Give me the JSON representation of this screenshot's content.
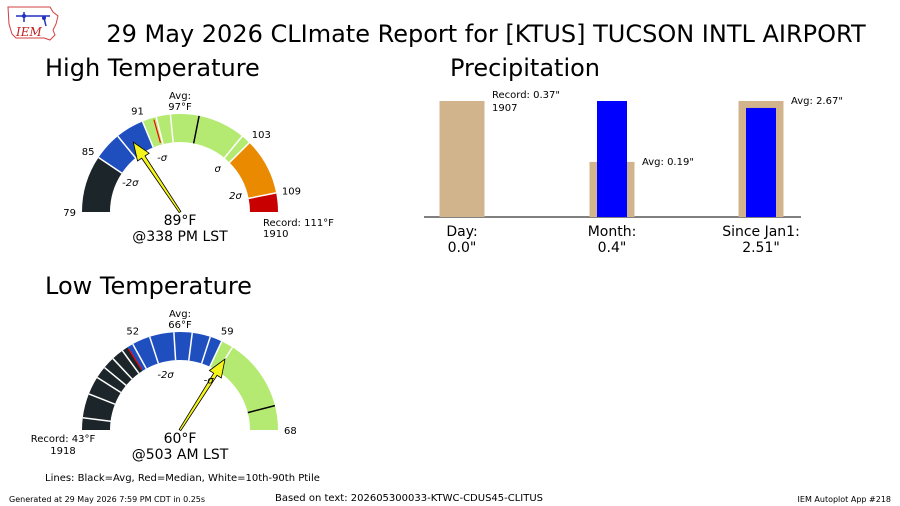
{
  "logo": {
    "text": "IEM"
  },
  "report_title": "29 May 2026 CLImate Report for [KTUS] TUCSON INTL AIRPORT",
  "colors": {
    "dark": "#1c2529",
    "blue": "#1f4fbf",
    "green": "#b5ea72",
    "orange": "#e98a00",
    "red": "#c80000",
    "arrow": "#f5f51b",
    "precip_avg": "#d2b48c",
    "precip_obs": "#0000ff",
    "median_line": "#ff0000"
  },
  "chart_data": [
    {
      "type": "gauge",
      "title": "High Temperature",
      "min": 79,
      "max": 111,
      "tick_labels": [
        79,
        85,
        91,
        103,
        109
      ],
      "avg_label": "Avg:\n97°F",
      "avg": 97,
      "sigma_labels": [
        {
          "text": "-2σ",
          "value": 84.5
        },
        {
          "text": "-σ",
          "value": 91.8
        },
        {
          "text": "σ",
          "value": 102.2
        },
        {
          "text": "2σ",
          "value": 108.0
        }
      ],
      "bands": [
        {
          "from": 79,
          "to": 85,
          "color": "dark"
        },
        {
          "from": 85,
          "to": 91,
          "color": "blue"
        },
        {
          "from": 91,
          "to": 103,
          "color": "green"
        },
        {
          "from": 103,
          "to": 109,
          "color": "orange"
        },
        {
          "from": 109,
          "to": 111,
          "color": "red"
        }
      ],
      "separators": [
        85,
        88,
        91,
        92.5,
        94,
        97,
        102,
        103,
        109
      ],
      "median": 92.2,
      "record_label": "Record: 111°F\n1910",
      "observed": 89,
      "observed_label": "89°F",
      "time_label": "@338 PM LST"
    },
    {
      "type": "gauge",
      "title": "Low Temperature",
      "min": 43,
      "max": 68,
      "tick_labels": [
        52,
        59,
        68
      ],
      "avg_label": "Avg:\n66°F",
      "avg": 66,
      "sigma_labels": [
        {
          "text": "-2σ",
          "value": 53.5
        },
        {
          "text": "-σ",
          "value": 59.6
        }
      ],
      "bands": [
        {
          "from": 43,
          "to": 51,
          "color": "dark"
        },
        {
          "from": 51,
          "to": 59,
          "color": "blue"
        },
        {
          "from": 59,
          "to": 68,
          "color": "green"
        }
      ],
      "separators": [
        44,
        46,
        47.5,
        48.5,
        49.5,
        50.5,
        51.5,
        53,
        55,
        56.5,
        58,
        59,
        60
      ],
      "median": 51,
      "record_label": "Record: 43°F\n1918",
      "observed": 60,
      "observed_label": "60°F",
      "time_label": "@503 AM LST"
    },
    {
      "type": "bar",
      "title": "Precipitation",
      "categories": [
        "Day:\n0.0\"",
        "Month:\n0.4\"",
        "Since Jan1:\n2.51\""
      ],
      "series": [
        {
          "name": "Avg",
          "values": [
            0.37,
            0.19,
            2.67
          ],
          "color": "precip_avg"
        },
        {
          "name": "Observed",
          "values": [
            0.0,
            0.4,
            2.51
          ],
          "color": "precip_obs"
        }
      ],
      "annotations": [
        {
          "text": "Record: 0.37\"\n1907",
          "category": 0
        },
        {
          "text": "Avg: 0.19\"",
          "category": 1
        },
        {
          "text": "Avg: 2.67\"",
          "category": 2
        }
      ]
    }
  ],
  "legend_note": "Lines: Black=Avg, Red=Median, White=10th-90th Ptile",
  "footer": {
    "generated": "Generated at 29 May 2026 7:59 PM CDT in 0.25s",
    "based_on": "Based on text: 202605300033-KTWC-CDUS45-CLITUS",
    "app": "IEM Autoplot App #218"
  }
}
